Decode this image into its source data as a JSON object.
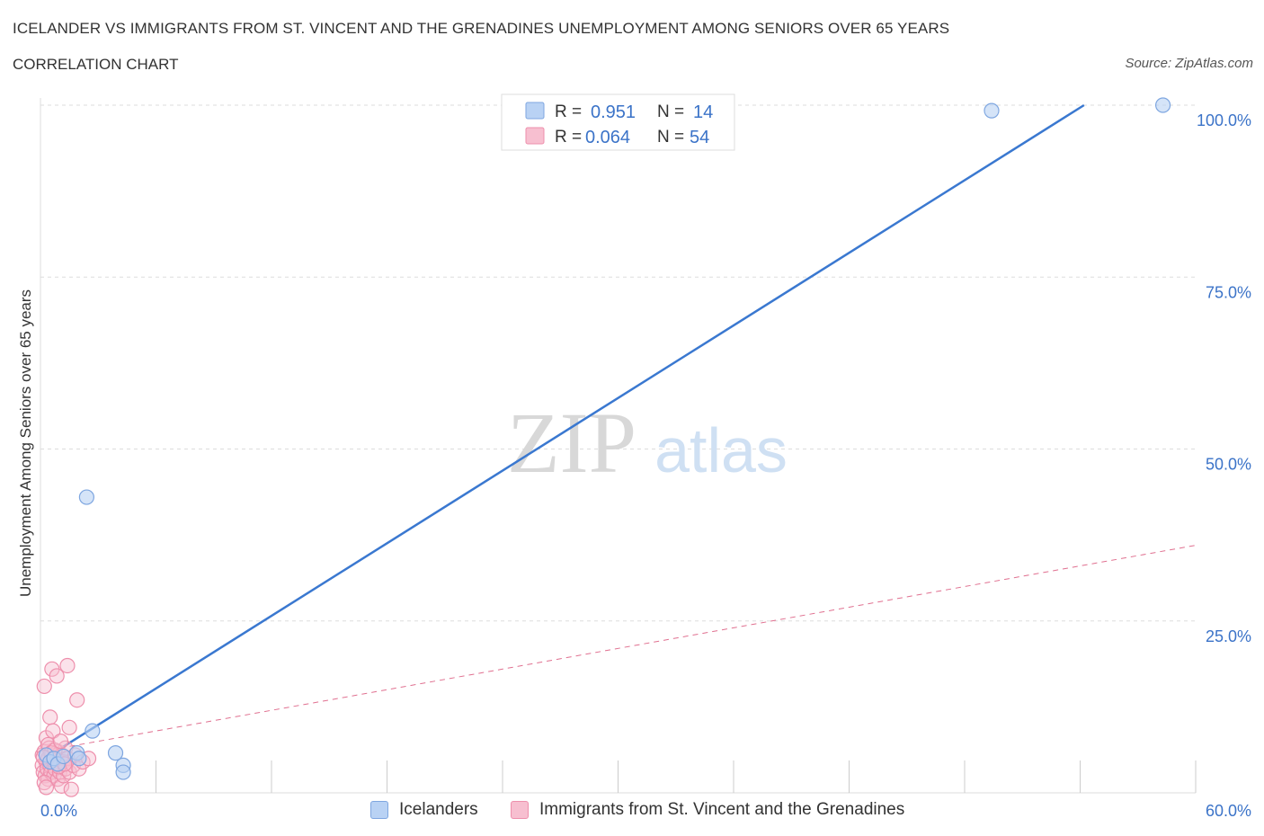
{
  "header": {
    "title": "ICELANDER VS IMMIGRANTS FROM ST. VINCENT AND THE GRENADINES UNEMPLOYMENT AMONG SENIORS OVER 65 YEARS",
    "subtitle": "CORRELATION CHART",
    "source": "Source: ZipAtlas.com"
  },
  "watermark": {
    "zip": "ZIP",
    "atlas": "atlas"
  },
  "colors": {
    "blue_fill": "#b9d2f4",
    "blue_stroke": "#7ea6e0",
    "blue_line": "#3a78d0",
    "blue_text": "#3b73c8",
    "pink_fill": "#f7bfd0",
    "pink_stroke": "#ee8fac",
    "pink_line": "#e07090",
    "grid": "#dddddd",
    "text": "#333333"
  },
  "legend_top": {
    "rows": [
      {
        "r_label": "R = ",
        "r_value": "0.951",
        "n_label": "N = ",
        "n_value": "14"
      },
      {
        "r_label": "R = ",
        "r_value": "0.064",
        "n_label": "N = ",
        "n_value": "54"
      }
    ]
  },
  "legend_bottom": {
    "series1": "Icelanders",
    "series2": "Immigrants from St. Vincent and the Grenadines"
  },
  "chart_data": {
    "type": "scatter",
    "title": "Icelander vs Immigrants from St. Vincent and the Grenadines Unemployment Among Seniors over 65 years",
    "xlabel": "",
    "ylabel": "Unemployment Among Seniors over 65 years",
    "xlim": [
      0,
      60
    ],
    "ylim": [
      0,
      100
    ],
    "x_tick_labels": [
      "0.0%",
      "60.0%"
    ],
    "y_tick_values": [
      25,
      50,
      75,
      100
    ],
    "y_tick_labels": [
      "25.0%",
      "50.0%",
      "75.0%",
      "100.0%"
    ],
    "grid": true,
    "series": [
      {
        "name": "Icelanders",
        "r": 0.951,
        "n": 14,
        "points": [
          {
            "x": 0.3,
            "y": 5.5
          },
          {
            "x": 0.5,
            "y": 4.5
          },
          {
            "x": 0.7,
            "y": 5.0
          },
          {
            "x": 0.9,
            "y": 4.2
          },
          {
            "x": 1.2,
            "y": 5.3
          },
          {
            "x": 1.9,
            "y": 5.8
          },
          {
            "x": 2.0,
            "y": 5.0
          },
          {
            "x": 2.4,
            "y": 43.0
          },
          {
            "x": 2.7,
            "y": 9.0
          },
          {
            "x": 3.9,
            "y": 5.8
          },
          {
            "x": 4.3,
            "y": 4.0
          },
          {
            "x": 4.3,
            "y": 3.0
          },
          {
            "x": 49.4,
            "y": 99.2
          },
          {
            "x": 58.3,
            "y": 100.0
          }
        ],
        "trend": {
          "x1": 0.5,
          "y1": 5.5,
          "x2": 54.2,
          "y2": 100
        }
      },
      {
        "name": "Immigrants from St. Vincent and the Grenadines",
        "r": 0.064,
        "n": 54,
        "points": [
          {
            "x": 0.1,
            "y": 4.0
          },
          {
            "x": 0.1,
            "y": 5.5
          },
          {
            "x": 0.15,
            "y": 3.0
          },
          {
            "x": 0.2,
            "y": 15.5
          },
          {
            "x": 0.2,
            "y": 6.0
          },
          {
            "x": 0.25,
            "y": 2.5
          },
          {
            "x": 0.3,
            "y": 4.5
          },
          {
            "x": 0.3,
            "y": 8.0
          },
          {
            "x": 0.35,
            "y": 3.5
          },
          {
            "x": 0.4,
            "y": 5.0
          },
          {
            "x": 0.4,
            "y": 2.0
          },
          {
            "x": 0.45,
            "y": 6.5
          },
          {
            "x": 0.5,
            "y": 11.0
          },
          {
            "x": 0.5,
            "y": 4.0
          },
          {
            "x": 0.55,
            "y": 3.0
          },
          {
            "x": 0.6,
            "y": 18.0
          },
          {
            "x": 0.6,
            "y": 5.5
          },
          {
            "x": 0.65,
            "y": 9.0
          },
          {
            "x": 0.7,
            "y": 2.5
          },
          {
            "x": 0.7,
            "y": 4.5
          },
          {
            "x": 0.75,
            "y": 3.5
          },
          {
            "x": 0.8,
            "y": 5.0
          },
          {
            "x": 0.85,
            "y": 17.0
          },
          {
            "x": 0.9,
            "y": 6.0
          },
          {
            "x": 0.9,
            "y": 2.0
          },
          {
            "x": 1.0,
            "y": 4.0
          },
          {
            "x": 1.0,
            "y": 3.0
          },
          {
            "x": 1.1,
            "y": 5.5
          },
          {
            "x": 1.1,
            "y": 1.0
          },
          {
            "x": 1.2,
            "y": 4.5
          },
          {
            "x": 1.2,
            "y": 2.5
          },
          {
            "x": 1.3,
            "y": 3.5
          },
          {
            "x": 1.3,
            "y": 6.5
          },
          {
            "x": 1.4,
            "y": 18.5
          },
          {
            "x": 1.4,
            "y": 5.0
          },
          {
            "x": 1.5,
            "y": 9.5
          },
          {
            "x": 1.5,
            "y": 3.0
          },
          {
            "x": 1.6,
            "y": 0.5
          },
          {
            "x": 1.7,
            "y": 4.0
          },
          {
            "x": 1.8,
            "y": 5.5
          },
          {
            "x": 1.9,
            "y": 13.5
          },
          {
            "x": 2.0,
            "y": 3.5
          },
          {
            "x": 2.2,
            "y": 4.5
          },
          {
            "x": 2.5,
            "y": 5.0
          },
          {
            "x": 0.2,
            "y": 1.5
          },
          {
            "x": 0.3,
            "y": 0.8
          },
          {
            "x": 0.4,
            "y": 7.0
          },
          {
            "x": 0.55,
            "y": 5.8
          },
          {
            "x": 0.65,
            "y": 4.8
          },
          {
            "x": 0.75,
            "y": 6.2
          },
          {
            "x": 0.95,
            "y": 3.8
          },
          {
            "x": 1.05,
            "y": 7.5
          },
          {
            "x": 1.25,
            "y": 4.2
          },
          {
            "x": 0.15,
            "y": 5.2
          }
        ],
        "trend": {
          "x1": 0.0,
          "y1": 6.0,
          "x2": 60.0,
          "y2": 36.0
        }
      }
    ]
  }
}
